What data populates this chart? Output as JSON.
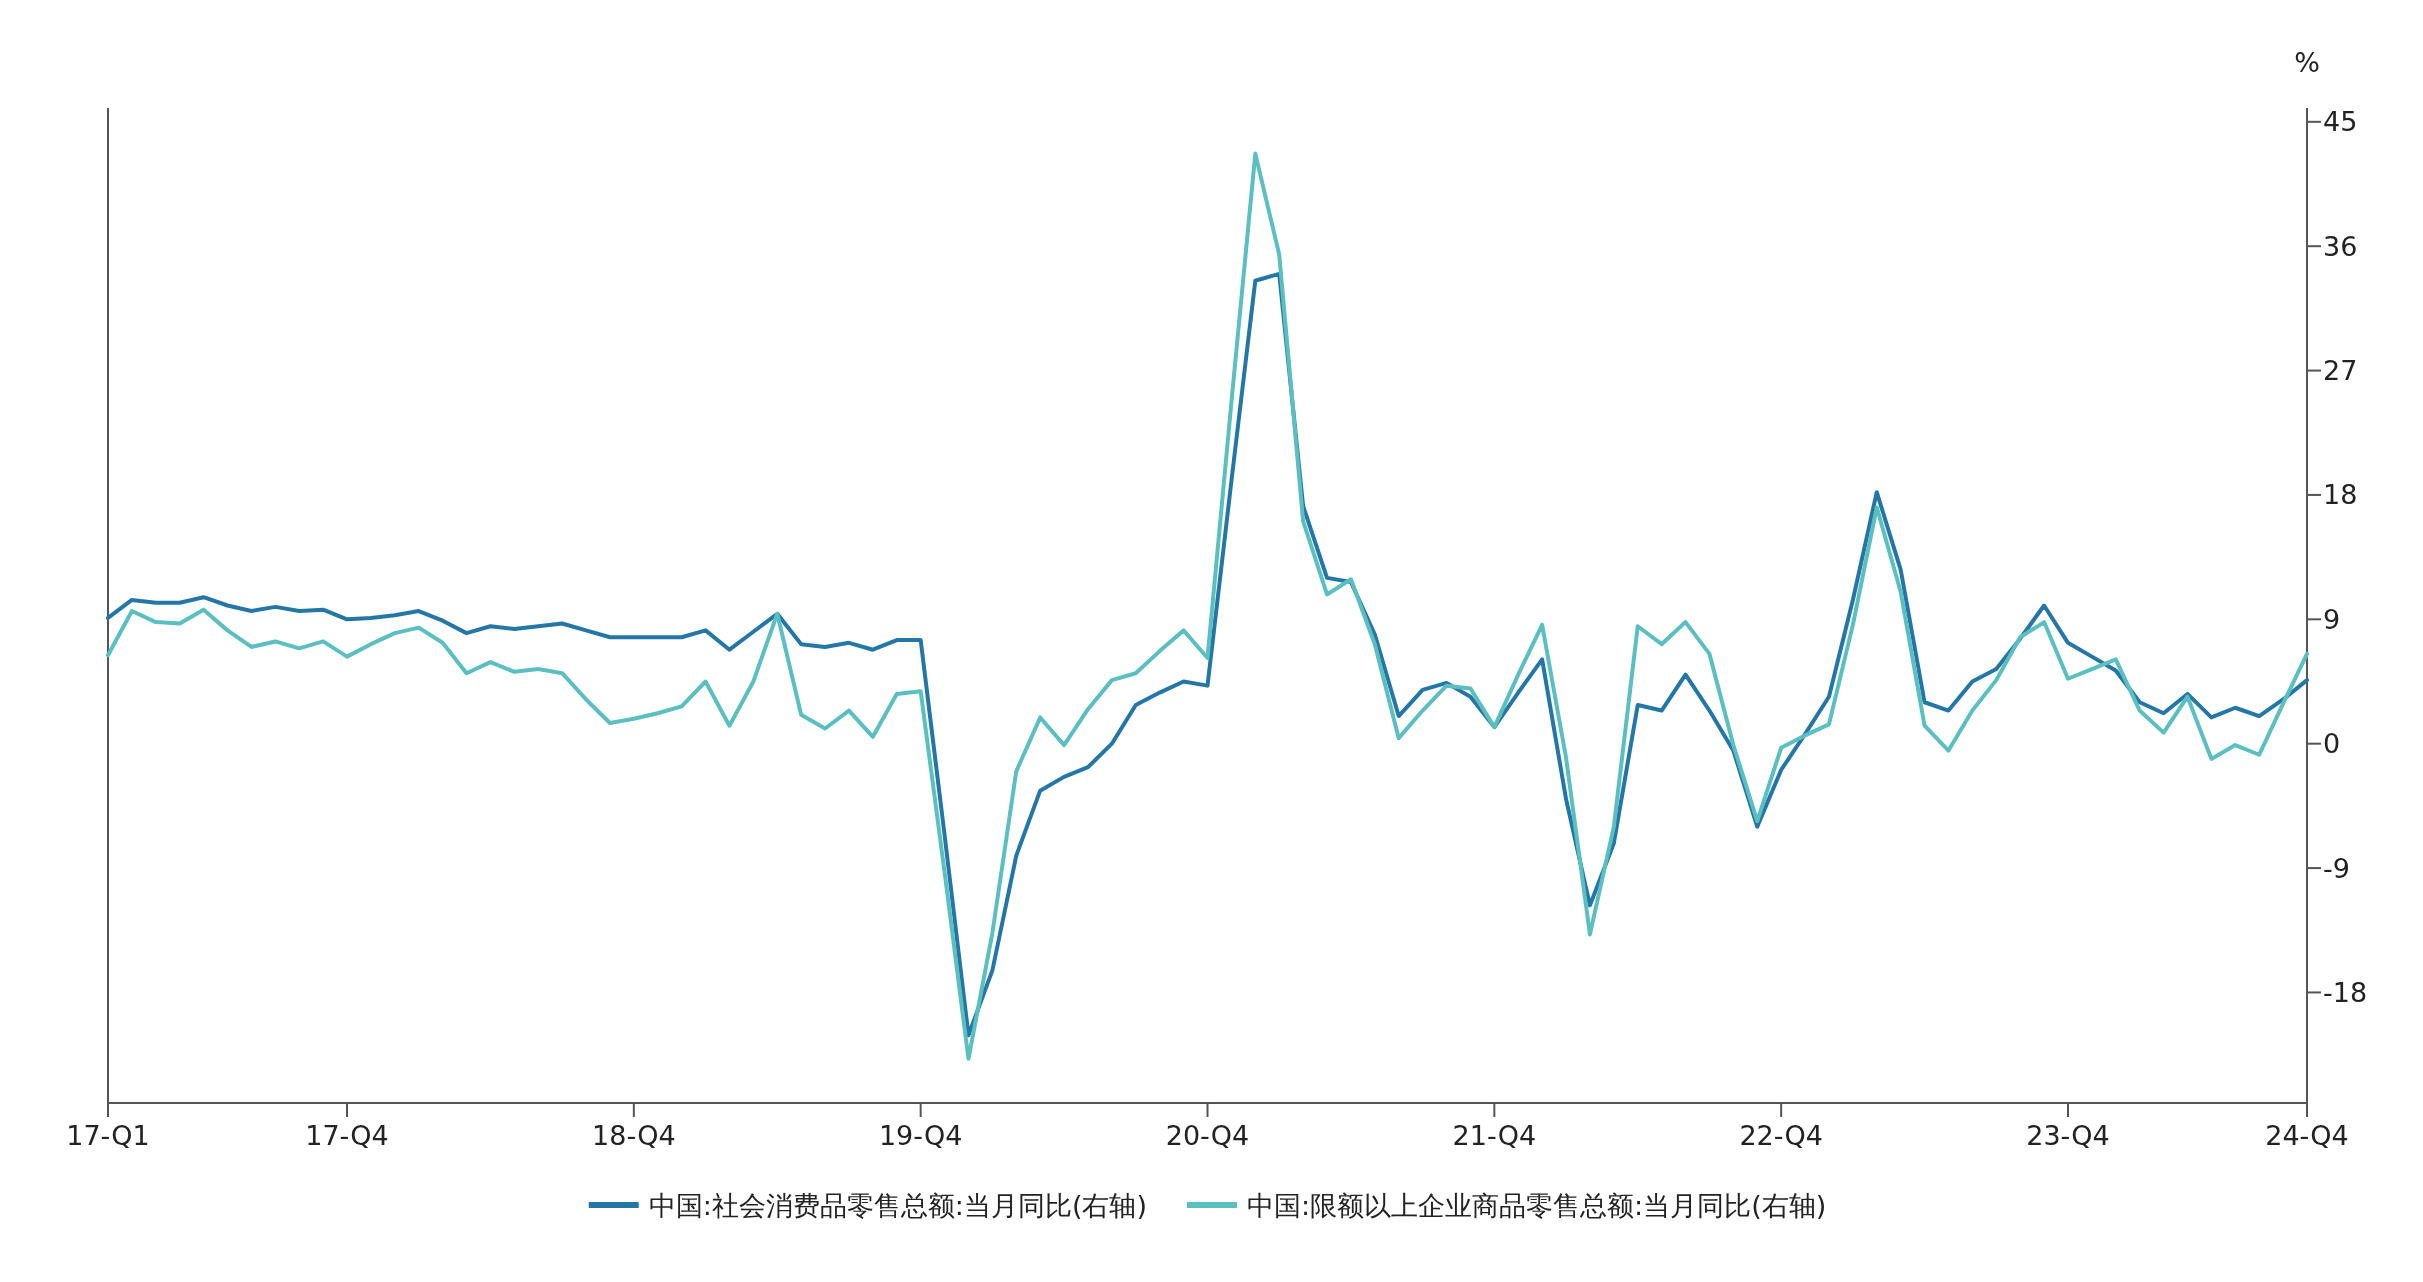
{
  "chart_data": {
    "type": "line",
    "ylabel": "%",
    "ylim": [
      -26,
      46
    ],
    "yticks": [
      -18,
      -9,
      0,
      9,
      18,
      27,
      36,
      45
    ],
    "legend": "bottom",
    "categories": [
      "17-Q1",
      null,
      null,
      null,
      null,
      null,
      null,
      null,
      null,
      null,
      "17-Q4",
      null,
      null,
      null,
      null,
      null,
      null,
      null,
      null,
      null,
      null,
      null,
      "18-Q4",
      null,
      null,
      null,
      null,
      null,
      null,
      null,
      null,
      null,
      null,
      null,
      "19-Q4",
      null,
      null,
      null,
      null,
      null,
      null,
      null,
      null,
      null,
      null,
      null,
      "20-Q4",
      null,
      null,
      null,
      null,
      null,
      null,
      null,
      null,
      null,
      null,
      null,
      "21-Q4",
      null,
      null,
      null,
      null,
      null,
      null,
      null,
      null,
      null,
      null,
      null,
      "22-Q4",
      null,
      null,
      null,
      null,
      null,
      null,
      null,
      null,
      null,
      null,
      null,
      "23-Q4",
      null,
      null,
      null,
      null,
      null,
      null,
      null,
      null,
      null,
      "24-Q4"
    ],
    "series": [
      {
        "name": "中国:社会消费品零售总额:当月同比(右轴)",
        "color": "#2477a5",
        "values": [
          9.1,
          10.4,
          10.2,
          10.2,
          10.6,
          10.0,
          9.6,
          9.9,
          9.6,
          9.7,
          9.0,
          9.1,
          9.3,
          9.6,
          8.9,
          8.0,
          8.5,
          8.3,
          8.5,
          8.7,
          8.2,
          7.7,
          7.7,
          7.7,
          7.7,
          8.2,
          6.8,
          8.1,
          9.4,
          7.2,
          7.0,
          7.3,
          6.8,
          7.5,
          7.5,
          -6.6,
          -21.1,
          -16.4,
          -8.1,
          -3.4,
          -2.4,
          -1.7,
          0,
          2.8,
          3.7,
          4.5,
          4.2,
          19.0,
          33.5,
          34.0,
          17.2,
          12.0,
          11.7,
          7.9,
          2.0,
          3.9,
          4.4,
          3.4,
          1.2,
          3.7,
          6.1,
          -4.0,
          -11.7,
          -7.2,
          2.8,
          2.4,
          5.0,
          2.4,
          -0.5,
          -6.0,
          -1.9,
          0.7,
          3.4,
          10.4,
          18.2,
          12.6,
          3.0,
          2.4,
          4.5,
          5.4,
          7.6,
          10.0,
          7.3,
          6.3,
          5.3,
          3.0,
          2.2,
          3.6,
          1.9,
          2.6,
          2.0,
          3.2,
          4.6
        ]
      },
      {
        "name": "中国:限额以上企业商品零售总额:当月同比(右轴)",
        "color": "#5bbfc0",
        "values": [
          6.4,
          9.6,
          8.8,
          8.7,
          9.7,
          8.2,
          7.0,
          7.4,
          6.9,
          7.4,
          6.3,
          7.2,
          8.0,
          8.4,
          7.3,
          5.1,
          5.9,
          5.2,
          5.4,
          5.1,
          3.2,
          1.5,
          1.8,
          2.2,
          2.7,
          4.5,
          1.3,
          4.5,
          9.4,
          2.1,
          1.1,
          2.4,
          0.5,
          3.6,
          3.8,
          -9.3,
          -22.8,
          -13.7,
          -2.0,
          1.9,
          -0.1,
          2.5,
          4.6,
          5.1,
          6.7,
          8.2,
          6.2,
          24.7,
          42.7,
          35.4,
          16.1,
          10.8,
          11.9,
          7.2,
          0.4,
          2.4,
          4.2,
          4.0,
          1.2,
          5.0,
          8.6,
          -1.0,
          -13.8,
          -6.0,
          8.5,
          7.2,
          8.8,
          6.5,
          -0.1,
          -5.6,
          -0.3,
          0.6,
          1.4,
          8.6,
          17.1,
          11.0,
          1.3,
          -0.5,
          2.4,
          4.6,
          7.7,
          8.8,
          4.7,
          5.4,
          6.1,
          2.4,
          0.8,
          3.4,
          -1.1,
          -0.1,
          -0.8,
          2.9,
          6.5
        ]
      }
    ]
  }
}
